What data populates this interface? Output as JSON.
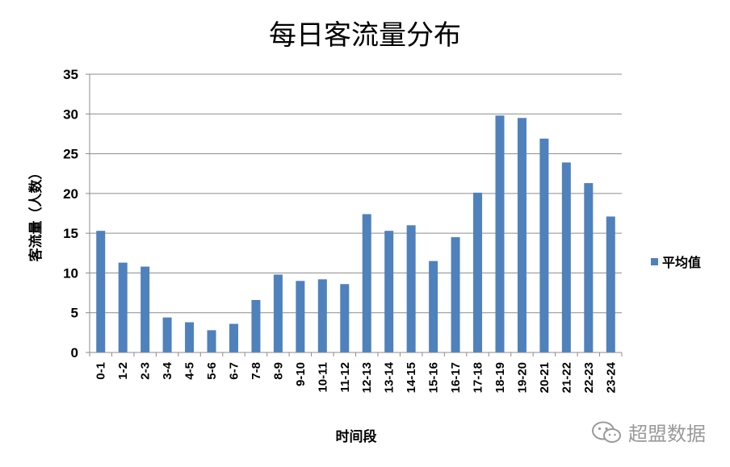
{
  "chart_data": {
    "type": "bar",
    "title": "每日客流量分布",
    "xlabel": "时间段",
    "ylabel": "客流量（人数）",
    "ylim": [
      0,
      35
    ],
    "yticks": [
      0,
      5,
      10,
      15,
      20,
      25,
      30,
      35
    ],
    "grid": true,
    "legend_position": "right",
    "categories": [
      "0-1",
      "1-2",
      "2-3",
      "3-4",
      "4-5",
      "5-6",
      "6-7",
      "7-8",
      "8-9",
      "9-10",
      "10-11",
      "11-12",
      "12-13",
      "13-14",
      "14-15",
      "15-16",
      "16-17",
      "17-18",
      "18-19",
      "19-20",
      "20-21",
      "21-22",
      "22-23",
      "23-24"
    ],
    "series": [
      {
        "name": "平均值",
        "color": "#4f81bd",
        "values": [
          15.3,
          11.3,
          10.8,
          4.4,
          3.8,
          2.8,
          3.6,
          6.6,
          9.8,
          9.0,
          9.2,
          8.6,
          17.4,
          15.3,
          16.0,
          11.5,
          14.5,
          20.1,
          29.8,
          29.5,
          26.9,
          23.9,
          21.3,
          17.1
        ]
      }
    ]
  },
  "watermark": {
    "icon": "wechat-icon",
    "text": "超盟数据"
  }
}
